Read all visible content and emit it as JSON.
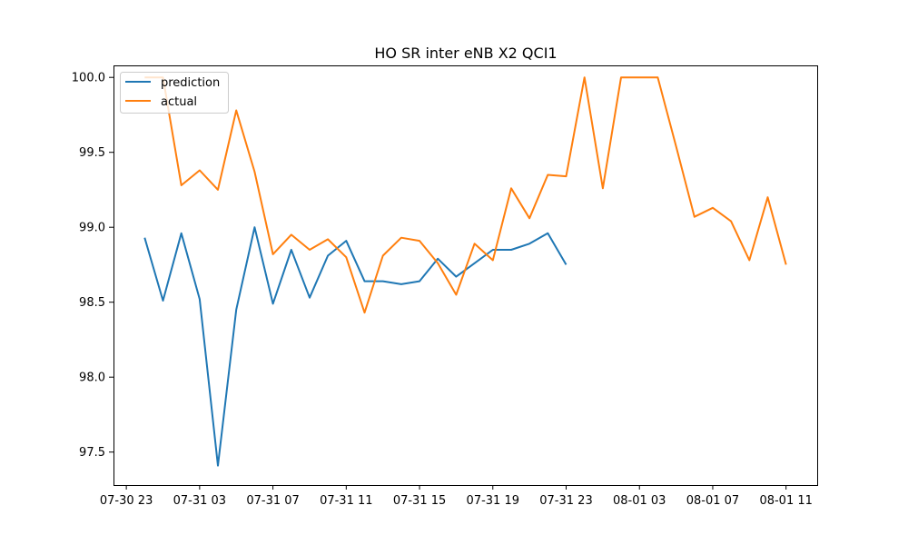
{
  "chart_data": {
    "type": "line",
    "title": "HO SR inter eNB X2 QCI1",
    "xlabel": "",
    "ylabel": "",
    "x_unit": "hour",
    "x_start": "2023-07-30T23:00",
    "xlim": [
      -0.7,
      37.7
    ],
    "ylim": [
      97.28,
      100.08
    ],
    "x_ticks": [
      {
        "x": 0,
        "label": "07-30 23"
      },
      {
        "x": 4,
        "label": "07-31 03"
      },
      {
        "x": 8,
        "label": "07-31 07"
      },
      {
        "x": 12,
        "label": "07-31 11"
      },
      {
        "x": 16,
        "label": "07-31 15"
      },
      {
        "x": 20,
        "label": "07-31 19"
      },
      {
        "x": 24,
        "label": "07-31 23"
      },
      {
        "x": 28,
        "label": "08-01 03"
      },
      {
        "x": 32,
        "label": "08-01 07"
      },
      {
        "x": 36,
        "label": "08-01 11"
      }
    ],
    "y_ticks": [
      {
        "y": 97.5,
        "label": "97.5"
      },
      {
        "y": 98.0,
        "label": "98.0"
      },
      {
        "y": 98.5,
        "label": "98.5"
      },
      {
        "y": 99.0,
        "label": "99.0"
      },
      {
        "y": 99.5,
        "label": "99.5"
      },
      {
        "y": 100.0,
        "label": "100.0"
      }
    ],
    "grid": false,
    "legend_position": "upper-left",
    "series": [
      {
        "name": "prediction",
        "color": "#1f77b4",
        "x": [
          1,
          2,
          3,
          4,
          5,
          6,
          7,
          8,
          9,
          10,
          11,
          12,
          13,
          14,
          15,
          16,
          17,
          18,
          19,
          20,
          21,
          22,
          23,
          24
        ],
        "values": [
          98.93,
          98.51,
          98.96,
          98.52,
          97.41,
          98.45,
          99.0,
          98.49,
          98.85,
          98.53,
          98.81,
          98.91,
          98.64,
          98.64,
          98.62,
          98.64,
          98.79,
          98.67,
          98.76,
          98.85,
          98.85,
          98.89,
          98.96,
          98.75
        ]
      },
      {
        "name": "actual",
        "color": "#ff7f0e",
        "x": [
          1,
          2,
          3,
          4,
          5,
          6,
          7,
          8,
          9,
          10,
          11,
          12,
          13,
          14,
          15,
          16,
          17,
          18,
          19,
          20,
          21,
          22,
          23,
          24,
          25,
          26,
          27,
          28,
          29,
          30,
          31,
          32,
          33,
          34,
          35,
          36
        ],
        "values": [
          100.0,
          100.0,
          99.28,
          99.38,
          99.25,
          99.78,
          99.37,
          98.82,
          98.95,
          98.85,
          98.92,
          98.8,
          98.43,
          98.81,
          98.93,
          98.91,
          98.76,
          98.55,
          98.89,
          98.78,
          99.26,
          99.06,
          99.35,
          99.34,
          100.0,
          99.26,
          100.0,
          100.0,
          100.0,
          99.54,
          99.07,
          99.13,
          99.04,
          98.78,
          99.2,
          98.75
        ]
      }
    ]
  }
}
